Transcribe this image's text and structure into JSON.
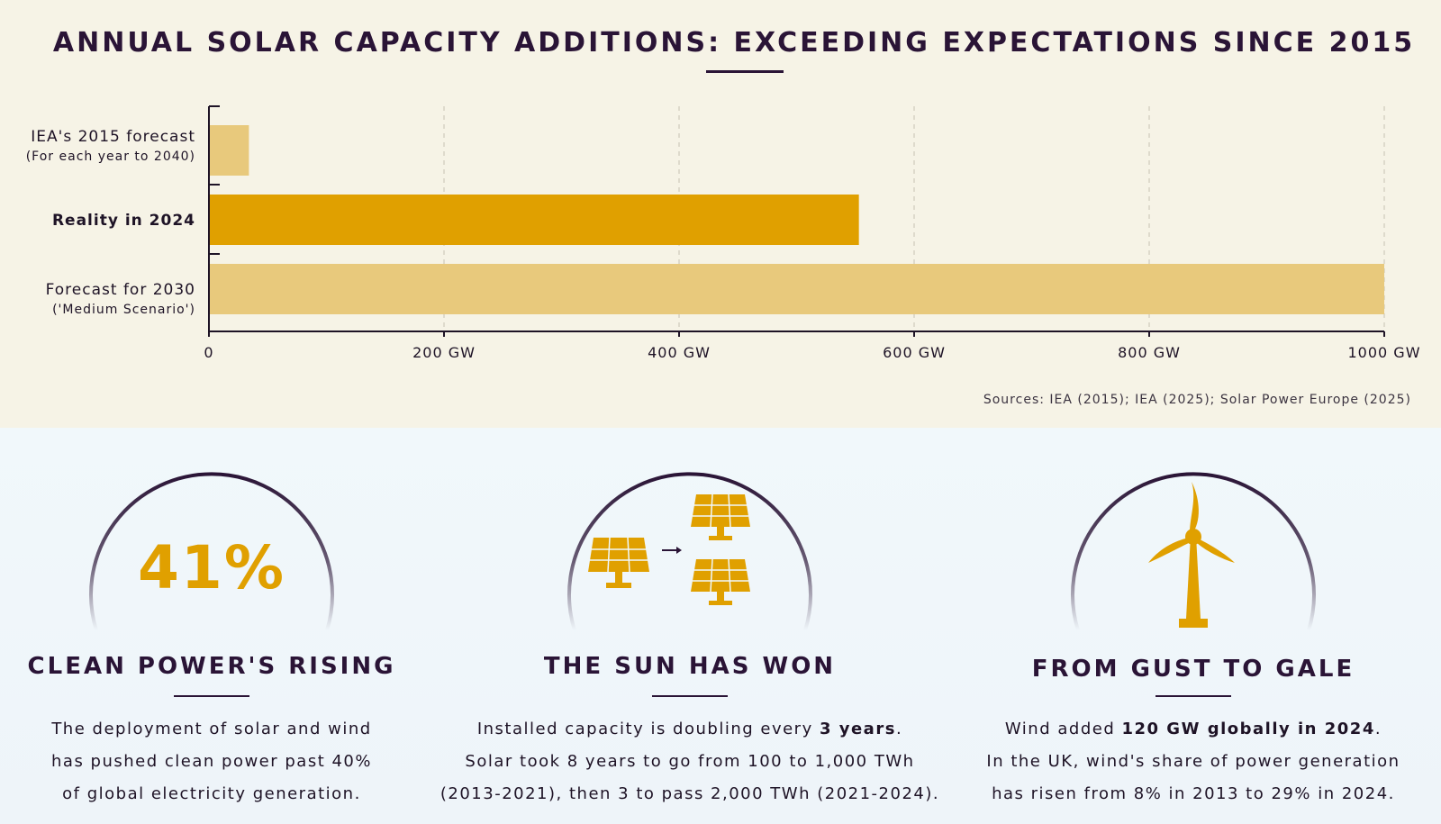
{
  "title": "ANNUAL SOLAR CAPACITY ADDITIONS: EXCEEDING EXPECTATIONS SINCE 2015",
  "sources": "Sources: IEA (2015); IEA (2025); Solar Power Europe (2025)",
  "chart_data": {
    "type": "bar",
    "orientation": "horizontal",
    "categories": [
      {
        "label": "IEA's 2015 forecast",
        "sublabel": "(For each year to 2040)",
        "value": 34,
        "color": "#e8c97c"
      },
      {
        "label": "Reality in 2024",
        "sublabel": "",
        "value": 553,
        "color": "#e0a000"
      },
      {
        "label": "Forecast for 2030",
        "sublabel": "('Medium Scenario')",
        "value": 1000,
        "color": "#e8c97c"
      }
    ],
    "xlim": [
      0,
      1000
    ],
    "ticks": [
      0,
      200,
      400,
      600,
      800,
      1000
    ],
    "tick_labels": [
      "0",
      "200 GW",
      "400 GW",
      "600 GW",
      "800 GW",
      "1000 GW"
    ],
    "grid": "vertical dashed"
  },
  "panels": [
    {
      "stat": "41%",
      "title": "CLEAN POWER'S RISING",
      "lines": [
        [
          "The deployment of solar and wind"
        ],
        [
          "has pushed clean power past 40%"
        ],
        [
          "of global electricity generation."
        ]
      ],
      "icon": "percent-stat"
    },
    {
      "title": "THE SUN HAS WON",
      "line1_pre": "Installed capacity is doubling every ",
      "line1_bold": "3 years",
      "line1_post": ".",
      "line2": "Solar took 8 years to go from 100 to 1,000 TWh",
      "line3": "(2013-2021), then 3 to pass 2,000 TWh (2021-2024).",
      "icon": "solar-panels-doubling-icon"
    },
    {
      "title": "FROM GUST TO GALE",
      "line1_pre": "Wind added ",
      "line1_bold": "120 GW globally in 2024",
      "line1_post": ".",
      "line2": "In the UK, wind's share of power generation",
      "line3": "has risen from 8% in 2013 to 29% in 2024.",
      "icon": "wind-turbine-icon"
    }
  ],
  "colors": {
    "accent": "#e0a000",
    "accent_light": "#e8c97c",
    "ink": "#2a1436"
  }
}
